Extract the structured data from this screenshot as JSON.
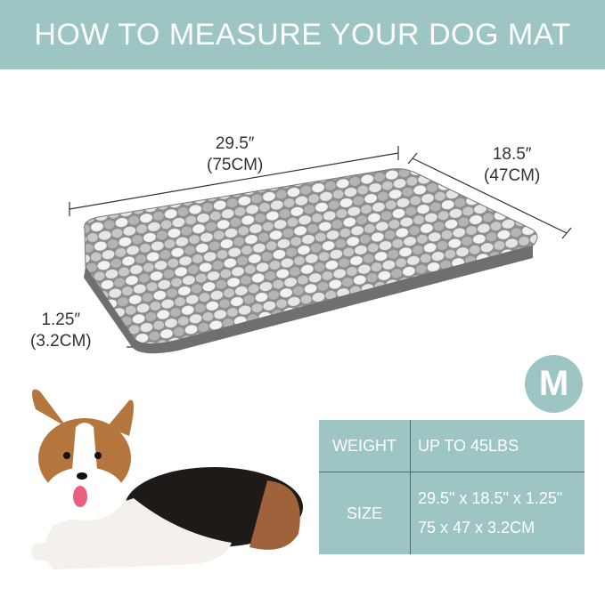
{
  "header": {
    "title": "HOW TO MEASURE YOUR DOG MAT"
  },
  "dimensions": {
    "length": {
      "in": "29.5″",
      "cm": "(75CM)"
    },
    "width": {
      "in": "18.5″",
      "cm": "(47CM)"
    },
    "thickness": {
      "in": "1.25″",
      "cm": "(3.2CM)"
    }
  },
  "size_badge": "M",
  "spec_table": {
    "rows": [
      {
        "label": "WEIGHT",
        "values": [
          "UP TO 45LBS"
        ]
      },
      {
        "label": "SIZE",
        "values": [
          "29.5\" x 18.5\" x 1.25\"",
          "75 x 47 x 3.2CM"
        ]
      }
    ]
  },
  "colors": {
    "accent": "#9dc5c4"
  }
}
